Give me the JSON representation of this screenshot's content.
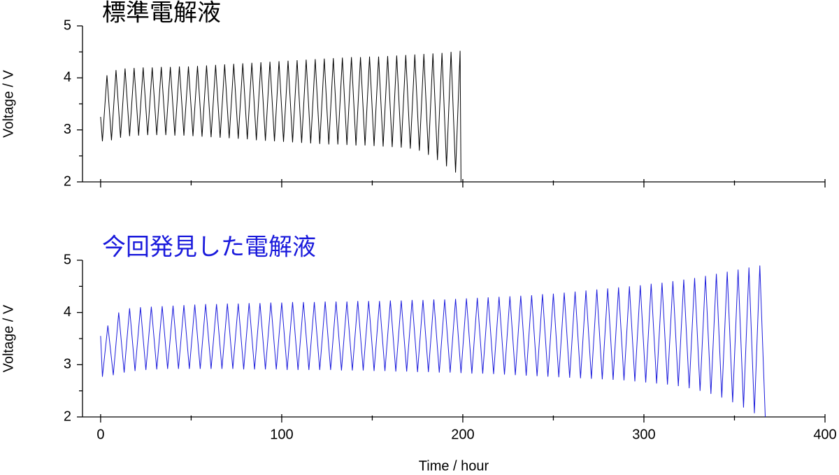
{
  "chart_data": [
    {
      "type": "line",
      "title": "標準電解液",
      "title_color": "#000000",
      "ylabel": "Voltage / V",
      "xlim": [
        -10,
        400
      ],
      "ylim": [
        2,
        5
      ],
      "xticks": [
        0,
        100,
        200,
        300,
        400
      ],
      "xtick_labels": false,
      "xminorticks": [
        50,
        150,
        250,
        350
      ],
      "yticks": [
        2,
        3,
        4,
        5
      ],
      "yminorticks": [
        2.5,
        3.5,
        4.5
      ],
      "series": [
        {
          "color": "#000000",
          "x": [
            0,
            1,
            3.5,
            6,
            8.5,
            11,
            13.5,
            16,
            18.5,
            21,
            23.5,
            26,
            28.5,
            31,
            33.5,
            36,
            38.5,
            41,
            43.5,
            46,
            48.5,
            51,
            53.5,
            56,
            58.5,
            61,
            63.5,
            66,
            68.5,
            71,
            73.5,
            76,
            78.5,
            81,
            83.5,
            86,
            88.5,
            91,
            93.5,
            96,
            98.5,
            101,
            103.5,
            106,
            108.5,
            111,
            113.5,
            116,
            118.5,
            121,
            123.5,
            126,
            128.5,
            131,
            133.5,
            136,
            138.5,
            141,
            143.5,
            146,
            148.5,
            151,
            153.5,
            156,
            158.5,
            161,
            163.5,
            166,
            168.5,
            171,
            173.5,
            176,
            178.5,
            181,
            183.5,
            186,
            188.5,
            191,
            193.5,
            196,
            198.5,
            199
          ],
          "values": [
            3.25,
            2.78,
            4.05,
            2.8,
            4.15,
            2.85,
            4.18,
            2.88,
            4.19,
            2.89,
            4.2,
            2.9,
            4.2,
            2.9,
            4.21,
            2.9,
            4.21,
            2.89,
            4.22,
            2.89,
            4.22,
            2.88,
            4.23,
            2.87,
            4.24,
            2.86,
            4.25,
            2.85,
            4.26,
            2.84,
            4.27,
            2.83,
            4.28,
            2.82,
            4.29,
            2.8,
            4.3,
            2.79,
            4.31,
            2.78,
            4.32,
            2.77,
            4.33,
            2.76,
            4.34,
            2.75,
            4.35,
            2.74,
            4.36,
            2.73,
            4.37,
            2.72,
            4.38,
            2.72,
            4.39,
            2.71,
            4.4,
            2.7,
            4.4,
            2.7,
            4.41,
            2.69,
            4.41,
            2.68,
            4.42,
            2.67,
            4.43,
            2.66,
            4.44,
            2.64,
            4.45,
            2.6,
            4.46,
            2.52,
            4.47,
            2.42,
            4.48,
            2.3,
            4.5,
            2.18,
            4.52,
            2.0
          ]
        }
      ]
    },
    {
      "type": "line",
      "title": "今回発見した電解液",
      "title_color": "#1a1adc",
      "ylabel": "Voltage / V",
      "xlabel": "Time / hour",
      "xlim": [
        -10,
        400
      ],
      "ylim": [
        2,
        5
      ],
      "xticks": [
        0,
        100,
        200,
        300,
        400
      ],
      "xtick_labels": true,
      "xminorticks": [
        50,
        150,
        250,
        350
      ],
      "yticks": [
        2,
        3,
        4,
        5
      ],
      "yminorticks": [
        2.5,
        3.5,
        4.5
      ],
      "series": [
        {
          "color": "#1a1adc",
          "x": [
            0,
            1,
            4,
            7,
            10,
            13,
            16,
            19,
            22,
            25,
            28,
            31,
            34,
            37,
            40,
            43,
            46,
            49,
            52,
            55,
            58,
            61,
            64,
            67,
            70,
            73,
            76,
            79,
            82,
            85,
            88,
            91,
            94,
            97,
            100,
            103,
            106,
            109,
            112,
            115,
            118,
            121,
            124,
            127,
            130,
            133,
            136,
            139,
            142,
            145,
            148,
            151,
            154,
            157,
            160,
            163,
            166,
            169,
            172,
            175,
            178,
            181,
            184,
            187,
            190,
            193,
            196,
            199,
            202,
            205,
            208,
            211,
            214,
            217,
            220,
            223,
            226,
            229,
            232,
            235,
            238,
            241,
            244,
            247,
            250,
            253,
            256,
            259,
            262,
            265,
            268,
            271,
            274,
            277,
            280,
            283,
            286,
            289,
            292,
            295,
            298,
            301,
            304,
            307,
            310,
            313,
            316,
            319,
            322,
            325,
            328,
            331,
            334,
            337,
            340,
            343,
            346,
            349,
            352,
            355,
            358,
            361,
            364,
            367
          ],
          "values": [
            3.55,
            2.77,
            3.75,
            2.8,
            4.0,
            2.85,
            4.08,
            2.88,
            4.1,
            2.9,
            4.11,
            2.91,
            4.12,
            2.92,
            4.13,
            2.92,
            4.14,
            2.92,
            4.15,
            2.92,
            4.16,
            2.92,
            4.16,
            2.92,
            4.17,
            2.92,
            4.17,
            2.91,
            4.18,
            2.91,
            4.18,
            2.91,
            4.19,
            2.91,
            4.19,
            2.9,
            4.2,
            2.9,
            4.2,
            2.9,
            4.2,
            2.9,
            4.21,
            2.9,
            4.21,
            2.89,
            4.21,
            2.89,
            4.22,
            2.89,
            4.22,
            2.88,
            4.22,
            2.88,
            4.23,
            2.87,
            4.23,
            2.87,
            4.24,
            2.86,
            4.24,
            2.86,
            4.25,
            2.85,
            4.25,
            2.85,
            4.26,
            2.84,
            4.27,
            2.83,
            4.28,
            2.83,
            4.29,
            2.82,
            4.3,
            2.81,
            4.31,
            2.8,
            4.32,
            2.79,
            4.33,
            2.78,
            4.35,
            2.77,
            4.36,
            2.76,
            4.38,
            2.75,
            4.4,
            2.74,
            4.42,
            2.73,
            4.44,
            2.72,
            4.46,
            2.71,
            4.48,
            2.7,
            4.5,
            2.68,
            4.52,
            2.66,
            4.55,
            2.64,
            4.57,
            2.62,
            4.6,
            2.59,
            4.63,
            2.55,
            4.66,
            2.5,
            4.7,
            2.44,
            4.74,
            2.37,
            4.78,
            2.28,
            4.82,
            2.18,
            4.86,
            2.07,
            4.9,
            2.0
          ]
        }
      ]
    }
  ]
}
